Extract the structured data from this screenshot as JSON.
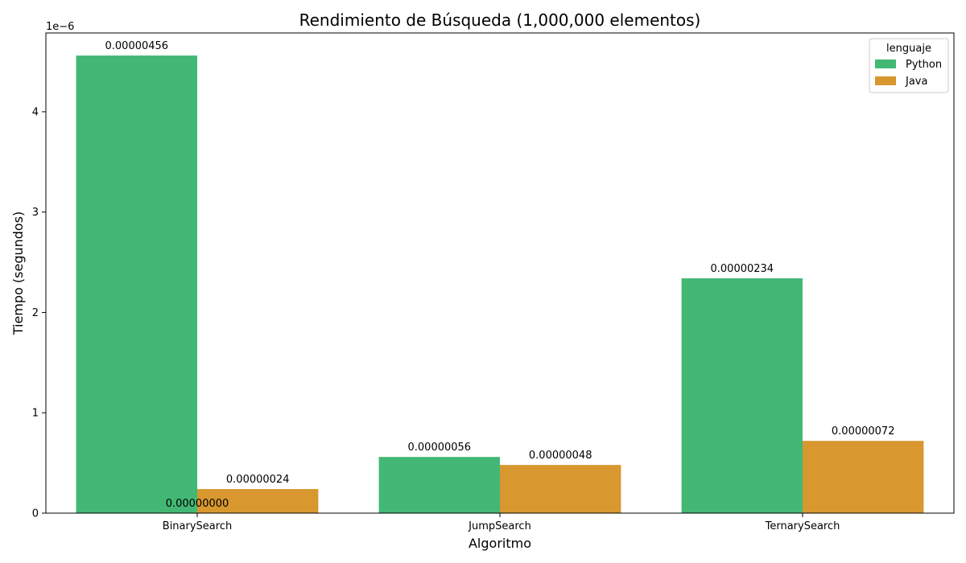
{
  "chart_data": {
    "type": "bar",
    "title": "Rendimiento de Búsqueda (1,000,000 elementos)",
    "xlabel": "Algoritmo",
    "ylabel": "Tiempo (segundos)",
    "y_multiplier_label": "1e−6",
    "categories": [
      "BinarySearch",
      "JumpSearch",
      "TernarySearch"
    ],
    "ylim": [
      0,
      4.785e-06
    ],
    "yticks": [
      0,
      1e-06,
      2e-06,
      3e-06,
      4e-06
    ],
    "ytick_labels": [
      "0",
      "1",
      "2",
      "3",
      "4"
    ],
    "legend": {
      "title": "lenguaje",
      "position": "top-right"
    },
    "grid": false,
    "series": [
      {
        "name": "Python",
        "color": "#42b874",
        "values": [
          4.56e-06,
          5.6e-07,
          2.34e-06
        ],
        "labels": [
          "0.00000456",
          "0.00000056",
          "0.00000234"
        ]
      },
      {
        "name": "Java",
        "color": "#d8972f",
        "values": [
          2.4e-07,
          4.8e-07,
          7.2e-07
        ],
        "labels": [
          "0.00000024",
          "0.00000048",
          "0.00000072"
        ]
      }
    ],
    "extra_annotations": [
      {
        "text": "0.00000000",
        "category": "BinarySearch",
        "value": 0
      }
    ]
  }
}
